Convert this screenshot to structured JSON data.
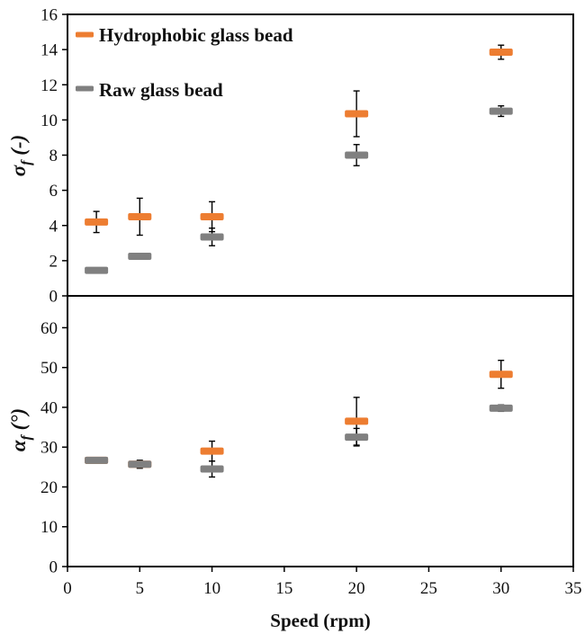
{
  "colors": {
    "hydrophobic": "#ED7D31",
    "raw": "#808080",
    "axis": "#000000"
  },
  "chart_data": [
    {
      "type": "scatter",
      "panel": "top",
      "ylabel_symbol": "σ",
      "ylabel_sub": "f",
      "ylabel_rest": " (-)",
      "ylim": [
        0,
        16
      ],
      "yticks": [
        0,
        2,
        4,
        6,
        8,
        10,
        12,
        14,
        16
      ],
      "xlim": [
        0,
        35
      ],
      "legend": [
        "Hydrophobic glass bead",
        "Raw glass bead"
      ],
      "legend_position": "top-left",
      "series": [
        {
          "name": "Hydrophobic glass bead",
          "color_key": "hydrophobic",
          "x": [
            2,
            5,
            10,
            20,
            30
          ],
          "y": [
            4.2,
            4.5,
            4.5,
            10.35,
            13.85
          ],
          "err": [
            0.6,
            1.05,
            0.85,
            1.3,
            0.4
          ]
        },
        {
          "name": "Raw glass bead",
          "color_key": "raw",
          "x": [
            2,
            5,
            10,
            20,
            30
          ],
          "y": [
            1.45,
            2.25,
            3.35,
            8.0,
            10.5
          ],
          "err": [
            0,
            0,
            0.5,
            0.6,
            0.3
          ]
        }
      ]
    },
    {
      "type": "scatter",
      "panel": "bottom",
      "ylabel_symbol": "α",
      "ylabel_sub": "f",
      "ylabel_rest": " (°)",
      "ylim": [
        0,
        68
      ],
      "yticks": [
        0,
        10,
        20,
        30,
        40,
        50,
        60
      ],
      "xlim": [
        0,
        35
      ],
      "xticks": [
        0,
        5,
        10,
        15,
        20,
        25,
        30,
        35
      ],
      "xlabel": "Speed (rpm)",
      "series": [
        {
          "name": "Hydrophobic glass bead",
          "color_key": "hydrophobic",
          "x": [
            2,
            5,
            10,
            20,
            30
          ],
          "y": [
            26.7,
            25.7,
            29.0,
            36.5,
            48.3
          ],
          "err": [
            0,
            0.8,
            2.5,
            6.0,
            3.5
          ]
        },
        {
          "name": "Raw glass bead",
          "color_key": "raw",
          "x": [
            2,
            5,
            10,
            20,
            30
          ],
          "y": [
            26.7,
            25.7,
            24.5,
            32.5,
            39.8
          ],
          "err": [
            0,
            1.0,
            2.0,
            2.2,
            0.8
          ]
        }
      ]
    }
  ]
}
